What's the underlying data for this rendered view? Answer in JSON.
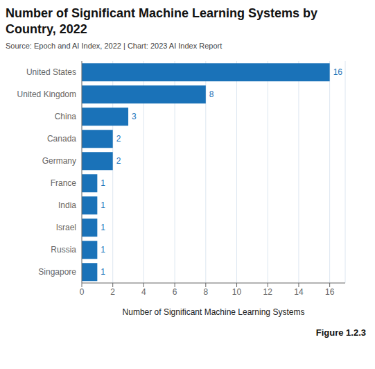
{
  "chart_data": {
    "type": "bar",
    "orientation": "horizontal",
    "title": "Number of Significant Machine Learning Systems by Country, 2022",
    "subtitle": "Source: Epoch and AI Index, 2022 | Chart: 2023 AI Index Report",
    "x_label": "Number of Significant Machine Learning Systems",
    "annotations": [
      "Figure 1.2.3"
    ],
    "categories": [
      "Singapore",
      "Russia",
      "Israel",
      "India",
      "France",
      "Germany",
      "Canada",
      "China",
      "United Kingdom",
      "United States"
    ],
    "values": [
      1,
      1,
      1,
      1,
      1,
      2,
      2,
      3,
      8,
      16
    ],
    "color": "#1a72b8",
    "xlim": [
      0,
      17
    ],
    "xticks": [
      0,
      2,
      4,
      6,
      8,
      10,
      12,
      14,
      16
    ],
    "grid": true,
    "data_labels": true
  }
}
